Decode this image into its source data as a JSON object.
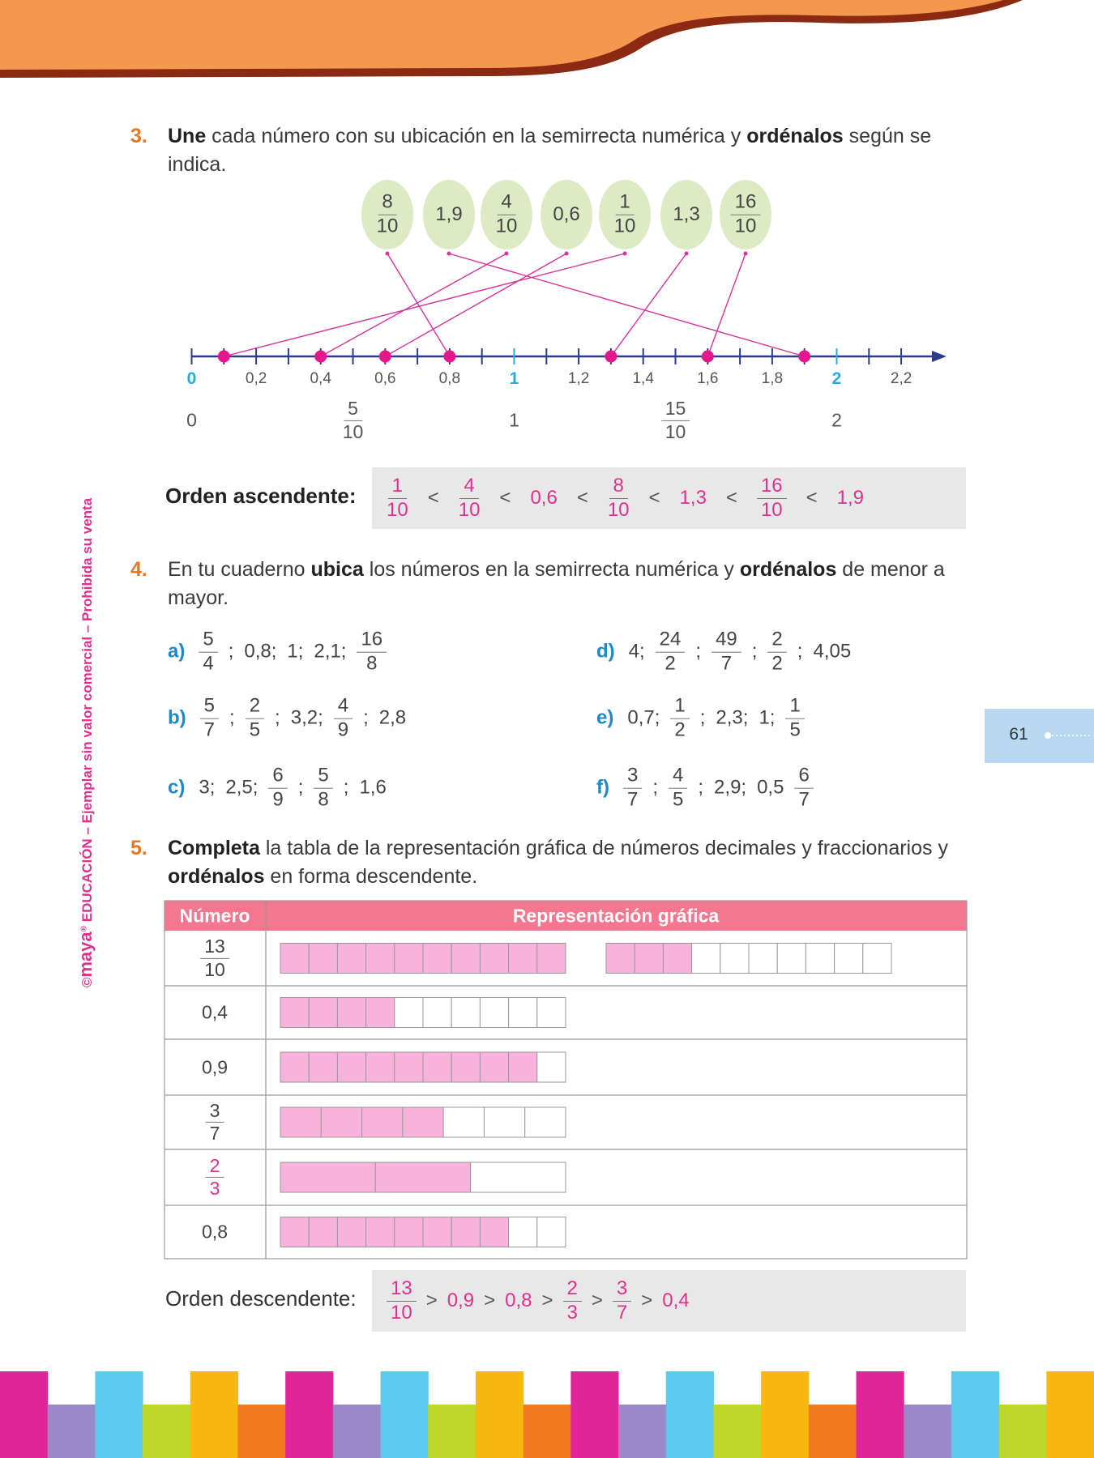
{
  "page_number": "61",
  "side_text": [
    "©",
    "maya",
    "®",
    " EDUCACIÓN – Ejemplar sin valor comercial – Prohibida su venta"
  ],
  "exercise_3": {
    "number": "3.",
    "instruction": [
      "Une",
      " cada número con su ubicación en la semirrecta numérica y ",
      "ordénalos",
      " según se indica."
    ],
    "bubbles": [
      {
        "num": "8",
        "den": "10"
      },
      "1,9",
      {
        "num": "4",
        "den": "10"
      },
      "0,6",
      {
        "num": "1",
        "den": "10"
      },
      "1,3",
      {
        "num": "16",
        "den": "10"
      }
    ],
    "axis_labels": [
      "0",
      "0,2",
      "0,4",
      "0,6",
      "0,8",
      "1",
      "1,2",
      "1,4",
      "1,6",
      "1,8",
      "2",
      "2,2"
    ],
    "equivalences": [
      "0",
      {
        "num": "5",
        "den": "10"
      },
      "1",
      {
        "num": "15",
        "den": "10"
      },
      "2"
    ],
    "order_label": "Orden ascendente:",
    "order": [
      {
        "num": "1",
        "den": "10"
      },
      {
        "num": "4",
        "den": "10"
      },
      "0,6",
      {
        "num": "8",
        "den": "10"
      },
      "1,3",
      {
        "num": "16",
        "den": "10"
      },
      "1,9"
    ],
    "order_separator": "<"
  },
  "exercise_4": {
    "number": "4.",
    "instruction": [
      "En tu cuaderno ",
      "ubica",
      " los números en la semirrecta numérica y ",
      "ordénalos",
      " de menor a mayor."
    ],
    "items": [
      {
        "letter": "a)",
        "terms": [
          {
            "num": "5",
            "den": "4"
          },
          ";",
          "0,8;",
          "1;",
          "2,1;",
          {
            "num": "16",
            "den": "8"
          }
        ]
      },
      {
        "letter": "b)",
        "terms": [
          {
            "num": "5",
            "den": "7"
          },
          ";",
          {
            "num": "2",
            "den": "5"
          },
          ";",
          "3,2;",
          {
            "num": "4",
            "den": "9"
          },
          ";",
          "2,8"
        ]
      },
      {
        "letter": "c)",
        "terms": [
          "3;",
          "2,5;",
          {
            "num": "6",
            "den": "9"
          },
          ";",
          {
            "num": "5",
            "den": "8"
          },
          ";",
          "1,6"
        ]
      },
      {
        "letter": "d)",
        "terms": [
          "4;",
          {
            "num": "24",
            "den": "2"
          },
          ";",
          {
            "num": "49",
            "den": "7"
          },
          ";",
          {
            "num": "2",
            "den": "2"
          },
          ";",
          "4,05"
        ]
      },
      {
        "letter": "e)",
        "terms": [
          "0,7;",
          {
            "num": "1",
            "den": "2"
          },
          ";",
          "2,3;",
          "1;",
          {
            "num": "1",
            "den": "5"
          }
        ]
      },
      {
        "letter": "f)",
        "terms": [
          {
            "num": "3",
            "den": "7"
          },
          ";",
          {
            "num": "4",
            "den": "5"
          },
          ";",
          "2,9;",
          "0,5",
          {
            "num": "6",
            "den": "7"
          }
        ]
      }
    ]
  },
  "exercise_5": {
    "number": "5.",
    "instruction": [
      "Completa",
      " la tabla de la representación gráfica de números decimales y fraccionarios y ",
      "ordénalos",
      " en forma descendente."
    ],
    "table": {
      "header": [
        "Número",
        "Representación gráfica"
      ],
      "rows": [
        {
          "num": "13",
          "den": "10"
        },
        "0,4",
        "0,9",
        {
          "num": "3",
          "den": "7"
        },
        {
          "num": "2",
          "den": "3"
        },
        "0,8"
      ]
    },
    "order_label": "Orden descendente:",
    "order": [
      {
        "num": "13",
        "den": "10"
      },
      "0,9",
      "0,8",
      {
        "num": "2",
        "den": "3"
      },
      {
        "num": "3",
        "den": "7"
      },
      "0,4"
    ],
    "order_separator": ">"
  }
}
